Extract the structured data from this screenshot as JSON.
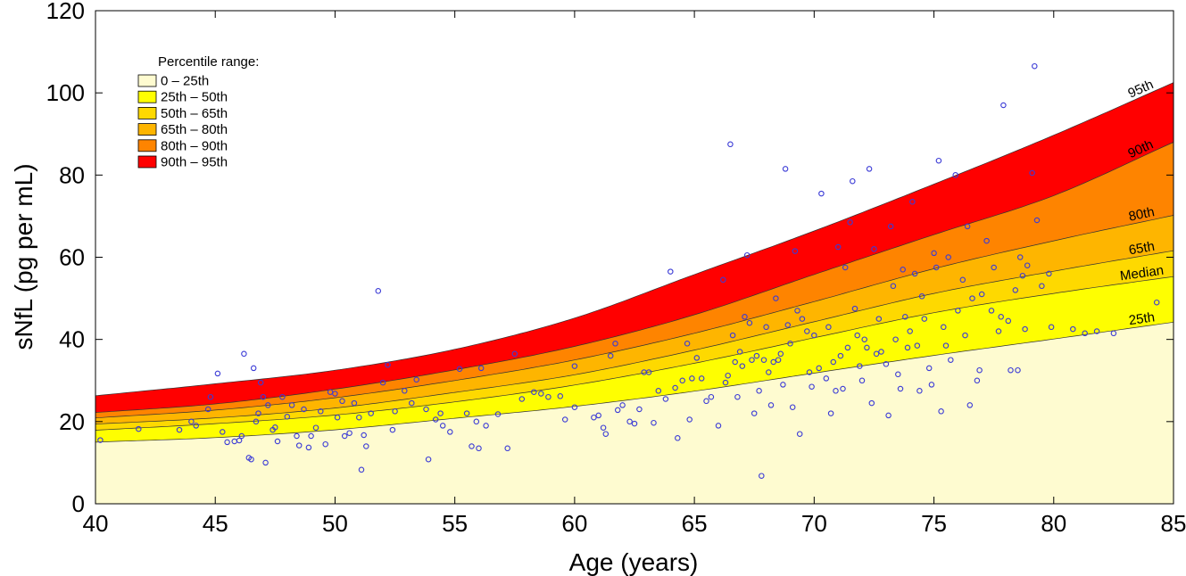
{
  "chart_data": {
    "type": "area",
    "xlabel": "Age (years)",
    "ylabel": "sNfL (pg per mL)",
    "xlim": [
      40,
      85
    ],
    "ylim": [
      0,
      120
    ],
    "xticks": [
      40,
      45,
      50,
      55,
      60,
      65,
      70,
      75,
      80,
      85
    ],
    "yticks": [
      0,
      20,
      40,
      60,
      80,
      100,
      120
    ],
    "legend": {
      "title": "Percentile range:",
      "position": "top-left",
      "items": [
        {
          "label": "0 – 25th",
          "color": "#fefbd0"
        },
        {
          "label": "25th – 50th",
          "color": "#fefe01"
        },
        {
          "label": "50th – 65th",
          "color": "#fed900"
        },
        {
          "label": "65th – 80th",
          "color": "#feb500"
        },
        {
          "label": "80th – 90th",
          "color": "#fe8400"
        },
        {
          "label": "90th – 95th",
          "color": "#ff0000"
        }
      ]
    },
    "curve_labels": [
      "25th",
      "Median",
      "65th",
      "80th",
      "90th",
      "95th"
    ],
    "curves": {
      "x": [
        40,
        45,
        50,
        55,
        60,
        65,
        70,
        75,
        80,
        85
      ],
      "p25": [
        15.0,
        16.1,
        18.0,
        20.8,
        23.7,
        27.4,
        31.8,
        36.1,
        40.1,
        44.2
      ],
      "median": [
        17.9,
        19.5,
        21.6,
        24.8,
        28.9,
        34.2,
        40.4,
        46.5,
        51.2,
        55.3
      ],
      "p65": [
        19.4,
        20.9,
        23.3,
        27.1,
        31.4,
        37.4,
        44.3,
        51.2,
        56.6,
        61.6
      ],
      "p80": [
        20.9,
        22.8,
        25.8,
        30.0,
        35.0,
        41.5,
        49.2,
        57.2,
        64.0,
        70.2
      ],
      "p90": [
        22.2,
        24.3,
        27.9,
        32.6,
        38.3,
        46.0,
        55.8,
        65.5,
        75.0,
        88.0
      ],
      "p95": [
        26.3,
        29.2,
        32.5,
        37.6,
        45.2,
        55.8,
        66.4,
        77.8,
        89.7,
        102.5
      ]
    },
    "points": [
      [
        40.2,
        15.5
      ],
      [
        41.8,
        18.2
      ],
      [
        43.5,
        18.0
      ],
      [
        44.0,
        20.0
      ],
      [
        44.2,
        19.0
      ],
      [
        44.7,
        23.0
      ],
      [
        44.8,
        26.0
      ],
      [
        45.1,
        31.7
      ],
      [
        45.3,
        17.5
      ],
      [
        45.5,
        15.0
      ],
      [
        45.8,
        15.2
      ],
      [
        46.0,
        15.4
      ],
      [
        46.1,
        16.5
      ],
      [
        46.2,
        36.5
      ],
      [
        46.4,
        11.2
      ],
      [
        46.5,
        10.8
      ],
      [
        46.6,
        33.0
      ],
      [
        46.7,
        20.0
      ],
      [
        46.8,
        22.0
      ],
      [
        46.9,
        29.5
      ],
      [
        47.0,
        26.0
      ],
      [
        47.1,
        10.0
      ],
      [
        47.2,
        24.0
      ],
      [
        47.4,
        18.0
      ],
      [
        47.5,
        18.6
      ],
      [
        47.6,
        15.2
      ],
      [
        47.8,
        26.0
      ],
      [
        48.0,
        21.2
      ],
      [
        48.2,
        24.0
      ],
      [
        48.4,
        16.5
      ],
      [
        48.5,
        14.2
      ],
      [
        48.7,
        23.0
      ],
      [
        48.9,
        13.7
      ],
      [
        49.0,
        16.5
      ],
      [
        49.2,
        18.5
      ],
      [
        49.4,
        22.5
      ],
      [
        49.6,
        14.5
      ],
      [
        49.8,
        27.2
      ],
      [
        50.0,
        26.8
      ],
      [
        50.1,
        21.0
      ],
      [
        50.3,
        25.0
      ],
      [
        50.4,
        16.5
      ],
      [
        50.6,
        17.2
      ],
      [
        50.8,
        24.5
      ],
      [
        51.0,
        21.0
      ],
      [
        51.1,
        8.3
      ],
      [
        51.2,
        16.7
      ],
      [
        51.3,
        14.0
      ],
      [
        51.5,
        22.0
      ],
      [
        51.8,
        51.8
      ],
      [
        52.0,
        29.5
      ],
      [
        52.2,
        33.8
      ],
      [
        52.4,
        18.0
      ],
      [
        52.5,
        22.5
      ],
      [
        52.9,
        27.5
      ],
      [
        53.2,
        24.5
      ],
      [
        53.4,
        30.2
      ],
      [
        53.8,
        23.0
      ],
      [
        53.9,
        10.8
      ],
      [
        54.2,
        20.5
      ],
      [
        54.4,
        22.0
      ],
      [
        54.5,
        19.0
      ],
      [
        54.8,
        17.5
      ],
      [
        55.2,
        32.8
      ],
      [
        55.5,
        22.0
      ],
      [
        55.7,
        14.0
      ],
      [
        55.9,
        20.0
      ],
      [
        56.0,
        13.5
      ],
      [
        56.1,
        33.0
      ],
      [
        56.3,
        19.0
      ],
      [
        56.8,
        21.8
      ],
      [
        57.2,
        13.5
      ],
      [
        57.5,
        36.5
      ],
      [
        57.8,
        25.5
      ],
      [
        58.3,
        27.2
      ],
      [
        58.6,
        26.8
      ],
      [
        58.9,
        26.0
      ],
      [
        59.4,
        26.2
      ],
      [
        59.6,
        20.5
      ],
      [
        60.0,
        23.5
      ],
      [
        60.0,
        33.5
      ],
      [
        60.8,
        21.0
      ],
      [
        61.0,
        21.5
      ],
      [
        61.2,
        18.5
      ],
      [
        61.3,
        17.0
      ],
      [
        61.5,
        36.0
      ],
      [
        61.7,
        39.0
      ],
      [
        61.8,
        22.8
      ],
      [
        62.0,
        24.0
      ],
      [
        62.3,
        20.0
      ],
      [
        62.5,
        19.5
      ],
      [
        62.7,
        23.0
      ],
      [
        62.9,
        32.0
      ],
      [
        63.1,
        32.0
      ],
      [
        63.3,
        19.7
      ],
      [
        63.5,
        27.5
      ],
      [
        63.8,
        25.5
      ],
      [
        64.0,
        56.5
      ],
      [
        64.2,
        28.2
      ],
      [
        64.3,
        16.0
      ],
      [
        64.5,
        30.0
      ],
      [
        64.7,
        39.0
      ],
      [
        64.8,
        20.5
      ],
      [
        64.9,
        30.5
      ],
      [
        65.1,
        35.5
      ],
      [
        65.3,
        30.5
      ],
      [
        65.5,
        25.0
      ],
      [
        65.7,
        26.0
      ],
      [
        66.0,
        19.0
      ],
      [
        66.2,
        54.5
      ],
      [
        66.3,
        29.5
      ],
      [
        66.4,
        31.2
      ],
      [
        66.5,
        87.5
      ],
      [
        66.6,
        41.0
      ],
      [
        66.7,
        34.5
      ],
      [
        66.8,
        26.0
      ],
      [
        66.9,
        37.0
      ],
      [
        67.0,
        33.5
      ],
      [
        67.1,
        45.5
      ],
      [
        67.2,
        60.5
      ],
      [
        67.3,
        44.0
      ],
      [
        67.4,
        35.0
      ],
      [
        67.5,
        22.0
      ],
      [
        67.6,
        36.0
      ],
      [
        67.7,
        27.5
      ],
      [
        67.8,
        6.8
      ],
      [
        67.9,
        35.0
      ],
      [
        68.0,
        43.0
      ],
      [
        68.1,
        32.0
      ],
      [
        68.2,
        24.0
      ],
      [
        68.3,
        34.5
      ],
      [
        68.4,
        50.0
      ],
      [
        68.5,
        35.0
      ],
      [
        68.6,
        36.5
      ],
      [
        68.7,
        29.0
      ],
      [
        68.8,
        81.5
      ],
      [
        68.9,
        43.5
      ],
      [
        69.0,
        39.0
      ],
      [
        69.1,
        23.5
      ],
      [
        69.2,
        61.5
      ],
      [
        69.3,
        47.0
      ],
      [
        69.4,
        17.0
      ],
      [
        69.5,
        45.0
      ],
      [
        69.7,
        42.0
      ],
      [
        69.8,
        32.0
      ],
      [
        69.9,
        28.5
      ],
      [
        70.0,
        41.0
      ],
      [
        70.2,
        33.0
      ],
      [
        70.3,
        75.5
      ],
      [
        70.5,
        30.5
      ],
      [
        70.6,
        43.0
      ],
      [
        70.7,
        22.0
      ],
      [
        70.8,
        34.5
      ],
      [
        70.9,
        27.5
      ],
      [
        71.0,
        62.5
      ],
      [
        71.1,
        36.0
      ],
      [
        71.2,
        28.0
      ],
      [
        71.3,
        57.5
      ],
      [
        71.4,
        38.0
      ],
      [
        71.5,
        68.5
      ],
      [
        71.6,
        78.5
      ],
      [
        71.7,
        47.5
      ],
      [
        71.8,
        41.0
      ],
      [
        71.9,
        33.5
      ],
      [
        72.0,
        30.0
      ],
      [
        72.1,
        40.0
      ],
      [
        72.2,
        38.0
      ],
      [
        72.3,
        81.5
      ],
      [
        72.4,
        24.5
      ],
      [
        72.5,
        62.0
      ],
      [
        72.6,
        36.5
      ],
      [
        72.7,
        45.0
      ],
      [
        72.8,
        37.0
      ],
      [
        73.0,
        34.0
      ],
      [
        73.1,
        21.5
      ],
      [
        73.2,
        67.5
      ],
      [
        73.3,
        53.0
      ],
      [
        73.4,
        40.0
      ],
      [
        73.5,
        31.5
      ],
      [
        73.6,
        28.0
      ],
      [
        73.7,
        57.0
      ],
      [
        73.8,
        45.5
      ],
      [
        73.9,
        38.0
      ],
      [
        74.0,
        42.0
      ],
      [
        74.1,
        73.5
      ],
      [
        74.2,
        56.0
      ],
      [
        74.3,
        38.5
      ],
      [
        74.4,
        27.5
      ],
      [
        74.5,
        50.5
      ],
      [
        74.6,
        45.0
      ],
      [
        74.8,
        33.0
      ],
      [
        74.9,
        29.0
      ],
      [
        75.0,
        61.0
      ],
      [
        75.1,
        57.5
      ],
      [
        75.2,
        83.5
      ],
      [
        75.3,
        22.5
      ],
      [
        75.4,
        43.0
      ],
      [
        75.5,
        38.5
      ],
      [
        75.6,
        60.0
      ],
      [
        75.7,
        35.0
      ],
      [
        75.9,
        80.0
      ],
      [
        76.0,
        47.0
      ],
      [
        76.2,
        54.5
      ],
      [
        76.3,
        41.0
      ],
      [
        76.4,
        67.5
      ],
      [
        76.5,
        24.0
      ],
      [
        76.6,
        50.0
      ],
      [
        76.8,
        30.0
      ],
      [
        76.9,
        32.5
      ],
      [
        77.0,
        51.0
      ],
      [
        77.2,
        64.0
      ],
      [
        77.4,
        47.0
      ],
      [
        77.5,
        57.5
      ],
      [
        77.7,
        42.0
      ],
      [
        77.8,
        45.5
      ],
      [
        77.9,
        97.0
      ],
      [
        78.1,
        44.5
      ],
      [
        78.2,
        32.5
      ],
      [
        78.4,
        52.0
      ],
      [
        78.5,
        32.5
      ],
      [
        78.6,
        60.0
      ],
      [
        78.7,
        55.5
      ],
      [
        78.8,
        42.5
      ],
      [
        78.9,
        58.0
      ],
      [
        79.1,
        80.5
      ],
      [
        79.2,
        106.5
      ],
      [
        79.3,
        69.0
      ],
      [
        79.5,
        53.0
      ],
      [
        79.8,
        56.0
      ],
      [
        79.9,
        43.0
      ],
      [
        80.8,
        42.5
      ],
      [
        81.3,
        41.5
      ],
      [
        81.8,
        42.0
      ],
      [
        82.5,
        41.5
      ],
      [
        84.3,
        49.0
      ]
    ]
  }
}
